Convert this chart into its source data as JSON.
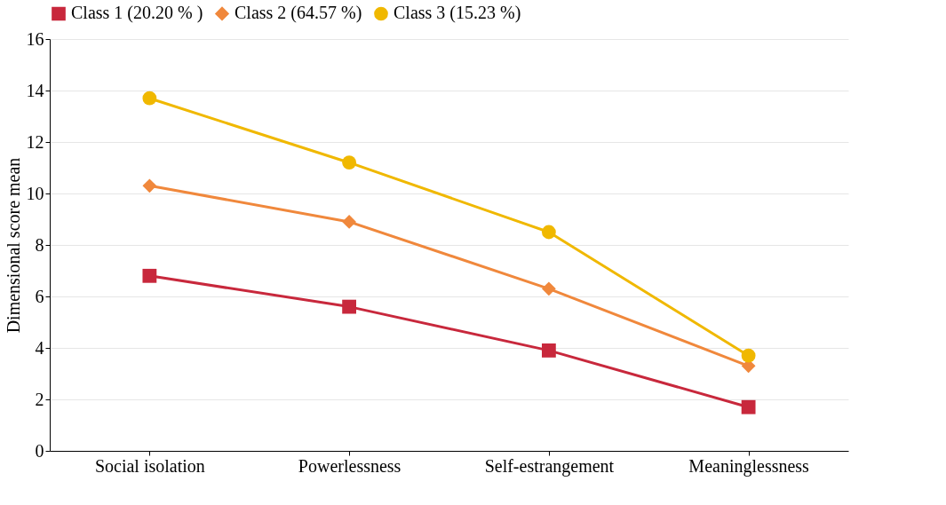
{
  "chart_data": {
    "type": "line",
    "ylabel": "Dimensional score mean",
    "categories": [
      "Social isolation",
      "Powerlessness",
      "Self-estrangement",
      "Meaninglessness"
    ],
    "series": [
      {
        "name": "Class 1 (20.20 % )",
        "color": "#c8283c",
        "marker": "square",
        "values": [
          6.8,
          5.6,
          3.9,
          1.7
        ]
      },
      {
        "name": "Class 2 (64.57 %)",
        "color": "#f0883c",
        "marker": "diamond",
        "values": [
          10.3,
          8.9,
          6.3,
          3.3
        ]
      },
      {
        "name": "Class 3 (15.23 %)",
        "color": "#f0b800",
        "marker": "circle",
        "values": [
          13.7,
          11.2,
          8.5,
          3.7
        ]
      }
    ],
    "ylim": [
      0,
      16
    ],
    "yticks": [
      0,
      2,
      4,
      6,
      8,
      10,
      12,
      14,
      16
    ],
    "grid": "y",
    "legend": "top",
    "line_style": "solid"
  }
}
